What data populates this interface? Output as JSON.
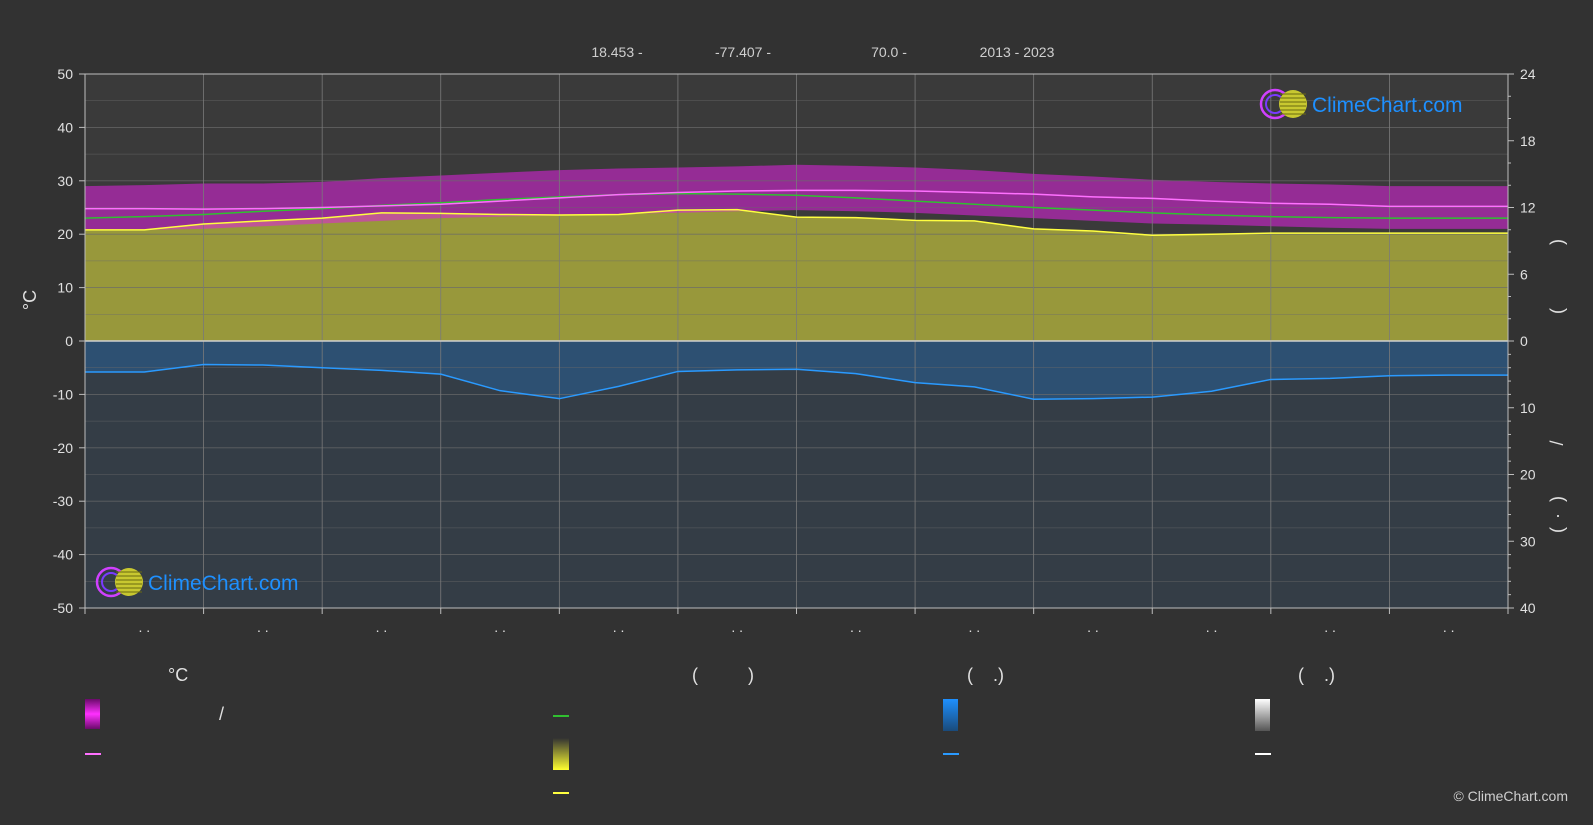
{
  "header": {
    "items": [
      "18.453 -",
      "-77.407 -",
      "70.0 -",
      "2013 - 2023"
    ]
  },
  "logo": {
    "text": "ClimeChart.com"
  },
  "copyright": "© ClimeChart.com",
  "colors": {
    "background": "#323232",
    "temp_range": "#e020e0",
    "sunshine": "#d2d23c",
    "precip": "#1e90ff",
    "daylight": "#30c030",
    "mean_temp": "#ff70ff",
    "sunshine_line": "#ffff40",
    "precip_line": "#2a9aff"
  },
  "legend": {
    "col1_title": "°C",
    "col1_slash": "/",
    "col2_title": "(          )",
    "col3_title": "(    .)",
    "col4_title": "(    .)"
  },
  "chart_data": {
    "type": "area",
    "x_tick_labels": [
      ". .",
      ". .",
      ". .",
      ". .",
      ". .",
      ". .",
      ". .",
      ". .",
      ". .",
      ". .",
      ". .",
      ". ."
    ],
    "y_left": {
      "label": "°C",
      "ylim": [
        -50,
        50
      ],
      "ticks": [
        50,
        40,
        30,
        20,
        10,
        0,
        -10,
        -20,
        -30,
        -40,
        -50
      ]
    },
    "y_right_upper": {
      "ylim": [
        0,
        24
      ],
      "ticks": [
        24,
        18,
        12,
        6,
        0
      ],
      "label_glyphs": [
        ")",
        "("
      ]
    },
    "y_right_lower": {
      "ylim": [
        0,
        40
      ],
      "ticks": [
        10,
        20,
        30,
        40
      ],
      "label_glyphs": [
        "/",
        ")",
        "·",
        "("
      ]
    },
    "grid": true,
    "x": [
      0,
      0.5,
      1,
      1.5,
      2,
      2.5,
      3,
      3.5,
      4,
      4.5,
      5,
      5.5,
      6,
      6.5,
      7,
      7.5,
      8,
      8.5,
      9,
      9.5,
      10,
      10.5,
      11,
      11.5,
      12
    ],
    "series": [
      {
        "key": "daylight",
        "values": [
          23.0,
          23.3,
          23.7,
          24.3,
          24.8,
          25.4,
          25.9,
          26.5,
          27.0,
          27.4,
          27.6,
          27.5,
          27.3,
          26.8,
          26.2,
          25.6,
          25.0,
          24.5,
          24.0,
          23.6,
          23.3,
          23.1,
          23.0,
          23.0,
          23.0
        ]
      },
      {
        "key": "mean_temp",
        "values": [
          24.8,
          24.8,
          24.7,
          24.8,
          25.0,
          25.3,
          25.6,
          26.2,
          26.8,
          27.4,
          27.8,
          28.1,
          28.2,
          28.2,
          28.1,
          27.8,
          27.5,
          27.0,
          26.7,
          26.2,
          25.8,
          25.6,
          25.2,
          25.2,
          25.2
        ]
      },
      {
        "key": "sunshine_line",
        "values": [
          20.8,
          20.8,
          21.9,
          22.5,
          23.0,
          24.0,
          23.9,
          23.7,
          23.6,
          23.7,
          24.5,
          24.6,
          23.2,
          23.1,
          22.6,
          22.5,
          21.0,
          20.6,
          19.8,
          20.0,
          20.2,
          20.2,
          20.2,
          20.2,
          20.2
        ]
      },
      {
        "key": "precip_line",
        "values": [
          -5.8,
          -5.8,
          -4.4,
          -4.5,
          -5.0,
          -5.5,
          -6.2,
          -9.3,
          -10.8,
          -8.5,
          -5.7,
          -5.4,
          -5.3,
          -6.1,
          -7.8,
          -8.6,
          -10.9,
          -10.8,
          -10.5,
          -9.4,
          -7.2,
          -7.0,
          -6.5,
          -6.4,
          -6.4
        ]
      },
      {
        "key": "temp_band_upper",
        "values": [
          29.0,
          29.2,
          29.5,
          29.5,
          29.8,
          30.5,
          31.0,
          31.5,
          32.0,
          32.3,
          32.5,
          32.7,
          33.0,
          32.8,
          32.5,
          32.0,
          31.3,
          30.8,
          30.2,
          29.8,
          29.5,
          29.3,
          29.0,
          29.0,
          29.0
        ]
      },
      {
        "key": "temp_band_lower",
        "values": [
          20.8,
          20.8,
          21.0,
          21.5,
          22.0,
          22.5,
          23.0,
          23.3,
          23.5,
          23.8,
          24.0,
          24.3,
          24.5,
          24.3,
          24.0,
          23.5,
          23.0,
          22.5,
          22.0,
          21.8,
          21.5,
          21.2,
          21.0,
          21.0,
          21.0
        ]
      }
    ]
  }
}
